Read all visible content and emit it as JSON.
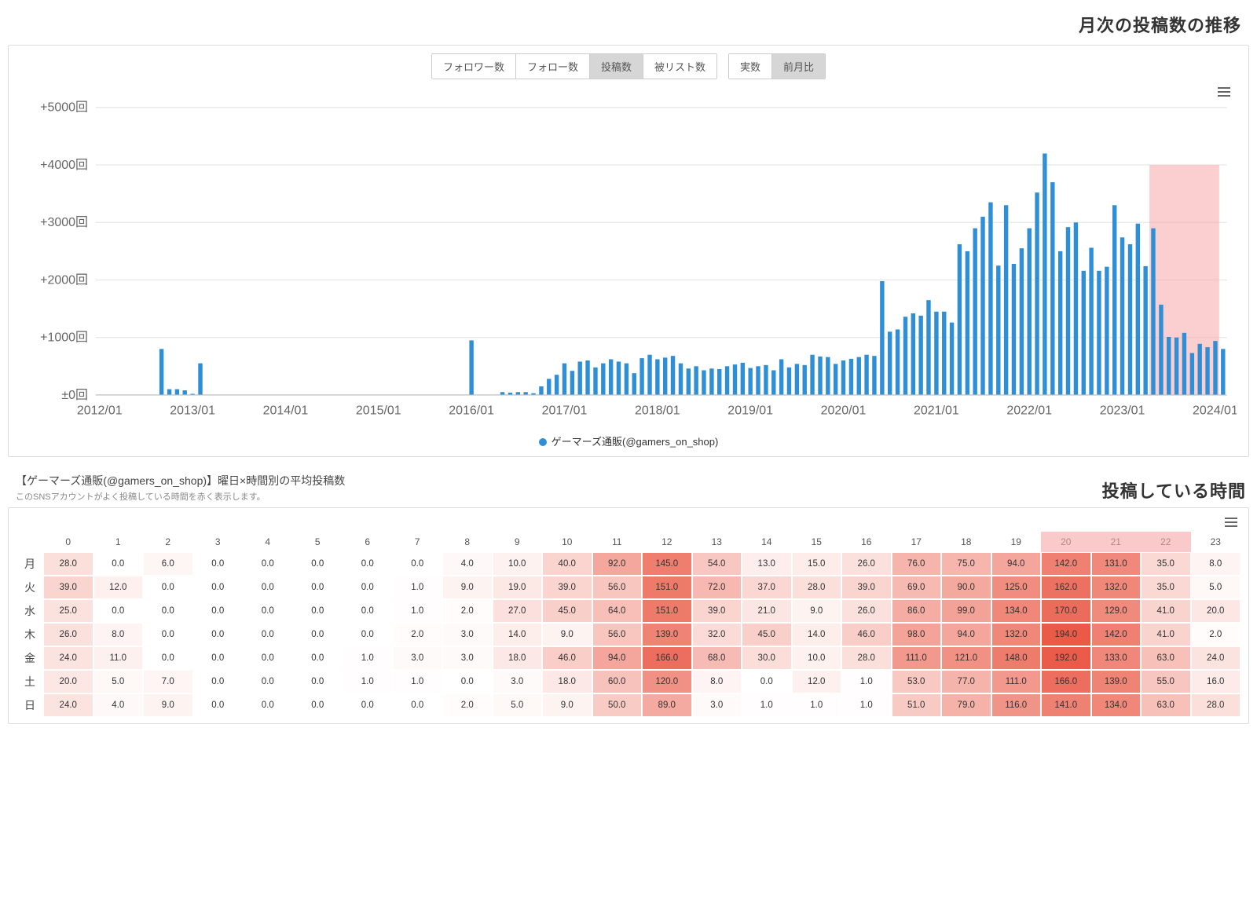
{
  "section1_title": "月次の投稿数の推移",
  "metric_buttons": {
    "items": [
      "フォロワー数",
      "フォロー数",
      "投稿数",
      "被リスト数"
    ],
    "active_index": 2
  },
  "mode_buttons": {
    "items": [
      "実数",
      "前月比"
    ],
    "active_index": 1
  },
  "bar_chart": {
    "type": "bar",
    "y_label_suffix": "回",
    "y_ticks": [
      5000,
      4000,
      3000,
      2000,
      1000,
      0
    ],
    "y_tick_labels": [
      "+5000回",
      "+4000回",
      "+3000回",
      "+2000回",
      "+1000回",
      "±0回"
    ],
    "ylim": [
      0,
      5000
    ],
    "x_start_year": 2012,
    "x_end_year": 2024,
    "x_tick_labels": [
      "2012/01",
      "2013/01",
      "2014/01",
      "2015/01",
      "2016/01",
      "2017/01",
      "2018/01",
      "2019/01",
      "2020/01",
      "2021/01",
      "2022/01",
      "2023/01",
      "2024/01"
    ],
    "bar_color": "#2f8fd6",
    "grid_color": "#e6e6e6",
    "axis_text_color": "#666666",
    "highlight_band": {
      "color": "#f7a7a7",
      "opacity": 0.55,
      "start_ym": "2023/05",
      "end_ym": "2024/02"
    },
    "values": [
      0,
      0,
      0,
      0,
      0,
      0,
      0,
      0,
      800,
      100,
      100,
      80,
      20,
      550,
      0,
      0,
      0,
      0,
      0,
      0,
      0,
      0,
      0,
      0,
      0,
      0,
      0,
      0,
      0,
      0,
      0,
      0,
      0,
      0,
      0,
      0,
      0,
      0,
      0,
      0,
      0,
      0,
      0,
      0,
      0,
      0,
      0,
      0,
      950,
      0,
      0,
      0,
      50,
      40,
      50,
      50,
      30,
      150,
      280,
      350,
      550,
      420,
      580,
      600,
      480,
      550,
      620,
      580,
      550,
      380,
      640,
      700,
      620,
      650,
      680,
      550,
      460,
      500,
      430,
      460,
      450,
      500,
      530,
      560,
      470,
      500,
      520,
      430,
      620,
      480,
      540,
      520,
      700,
      670,
      660,
      540,
      600,
      630,
      660,
      700,
      680,
      1980,
      1100,
      1140,
      1360,
      1420,
      1380,
      1650,
      1450,
      1450,
      1260,
      2620,
      2500,
      2900,
      3100,
      3350,
      2250,
      3300,
      2280,
      2550,
      2900,
      3520,
      4200,
      3700,
      2500,
      2920,
      3000,
      2160,
      2560,
      2160,
      2230,
      3300,
      2740,
      2620,
      2980,
      2240,
      2900,
      1570,
      1010,
      1000,
      1080,
      730,
      890,
      830,
      940,
      800
    ],
    "legend_label": "ゲーマーズ通販(@gamers_on_shop)",
    "legend_color": "#2f8fd6"
  },
  "section2_heading_main": "【ゲーマーズ通販(@gamers_on_shop)】曜日×時間別の平均投稿数",
  "section2_heading_sub": "このSNSアカウントがよく投稿している時間を赤く表示します。",
  "section2_title": "投稿している時間",
  "heatmap": {
    "type": "heatmap",
    "hours": [
      "0",
      "1",
      "2",
      "3",
      "4",
      "5",
      "6",
      "7",
      "8",
      "9",
      "10",
      "11",
      "12",
      "13",
      "14",
      "15",
      "16",
      "17",
      "18",
      "19",
      "20",
      "21",
      "22",
      "23"
    ],
    "days": [
      "月",
      "火",
      "水",
      "木",
      "金",
      "土",
      "日"
    ],
    "header_highlight_hours": [
      20,
      21,
      22
    ],
    "cell_border": "#ffffff",
    "text_color": "#333333",
    "color_scale": {
      "min_color": "#ffffff",
      "max_color": "#ea5a47",
      "min_value": 0,
      "max_value": 194
    },
    "rows": [
      [
        28.0,
        0.0,
        6.0,
        0.0,
        0.0,
        0.0,
        0.0,
        0.0,
        4.0,
        10.0,
        40.0,
        92.0,
        145.0,
        54.0,
        13.0,
        15.0,
        26.0,
        76.0,
        75.0,
        94.0,
        142.0,
        131.0,
        35.0,
        8.0
      ],
      [
        39.0,
        12.0,
        0.0,
        0.0,
        0.0,
        0.0,
        0.0,
        1.0,
        9.0,
        19.0,
        39.0,
        56.0,
        151.0,
        72.0,
        37.0,
        28.0,
        39.0,
        69.0,
        90.0,
        125.0,
        162.0,
        132.0,
        35.0,
        5.0
      ],
      [
        25.0,
        0.0,
        0.0,
        0.0,
        0.0,
        0.0,
        0.0,
        1.0,
        2.0,
        27.0,
        45.0,
        64.0,
        151.0,
        39.0,
        21.0,
        9.0,
        26.0,
        86.0,
        99.0,
        134.0,
        170.0,
        129.0,
        41.0,
        20.0
      ],
      [
        26.0,
        8.0,
        0.0,
        0.0,
        0.0,
        0.0,
        0.0,
        2.0,
        3.0,
        14.0,
        9.0,
        56.0,
        139.0,
        32.0,
        45.0,
        14.0,
        46.0,
        98.0,
        94.0,
        132.0,
        194.0,
        142.0,
        41.0,
        2.0
      ],
      [
        24.0,
        11.0,
        0.0,
        0.0,
        0.0,
        0.0,
        1.0,
        3.0,
        3.0,
        18.0,
        46.0,
        94.0,
        166.0,
        68.0,
        30.0,
        10.0,
        28.0,
        111.0,
        121.0,
        148.0,
        192.0,
        133.0,
        63.0,
        24.0
      ],
      [
        20.0,
        5.0,
        7.0,
        0.0,
        0.0,
        0.0,
        1.0,
        1.0,
        0.0,
        3.0,
        18.0,
        60.0,
        120.0,
        8.0,
        0.0,
        12.0,
        1.0,
        53.0,
        77.0,
        111.0,
        166.0,
        139.0,
        55.0,
        16.0
      ],
      [
        24.0,
        4.0,
        9.0,
        0.0,
        0.0,
        0.0,
        0.0,
        0.0,
        2.0,
        5.0,
        9.0,
        50.0,
        89.0,
        3.0,
        1.0,
        1.0,
        1.0,
        51.0,
        79.0,
        116.0,
        141.0,
        134.0,
        63.0,
        28.0
      ]
    ]
  }
}
